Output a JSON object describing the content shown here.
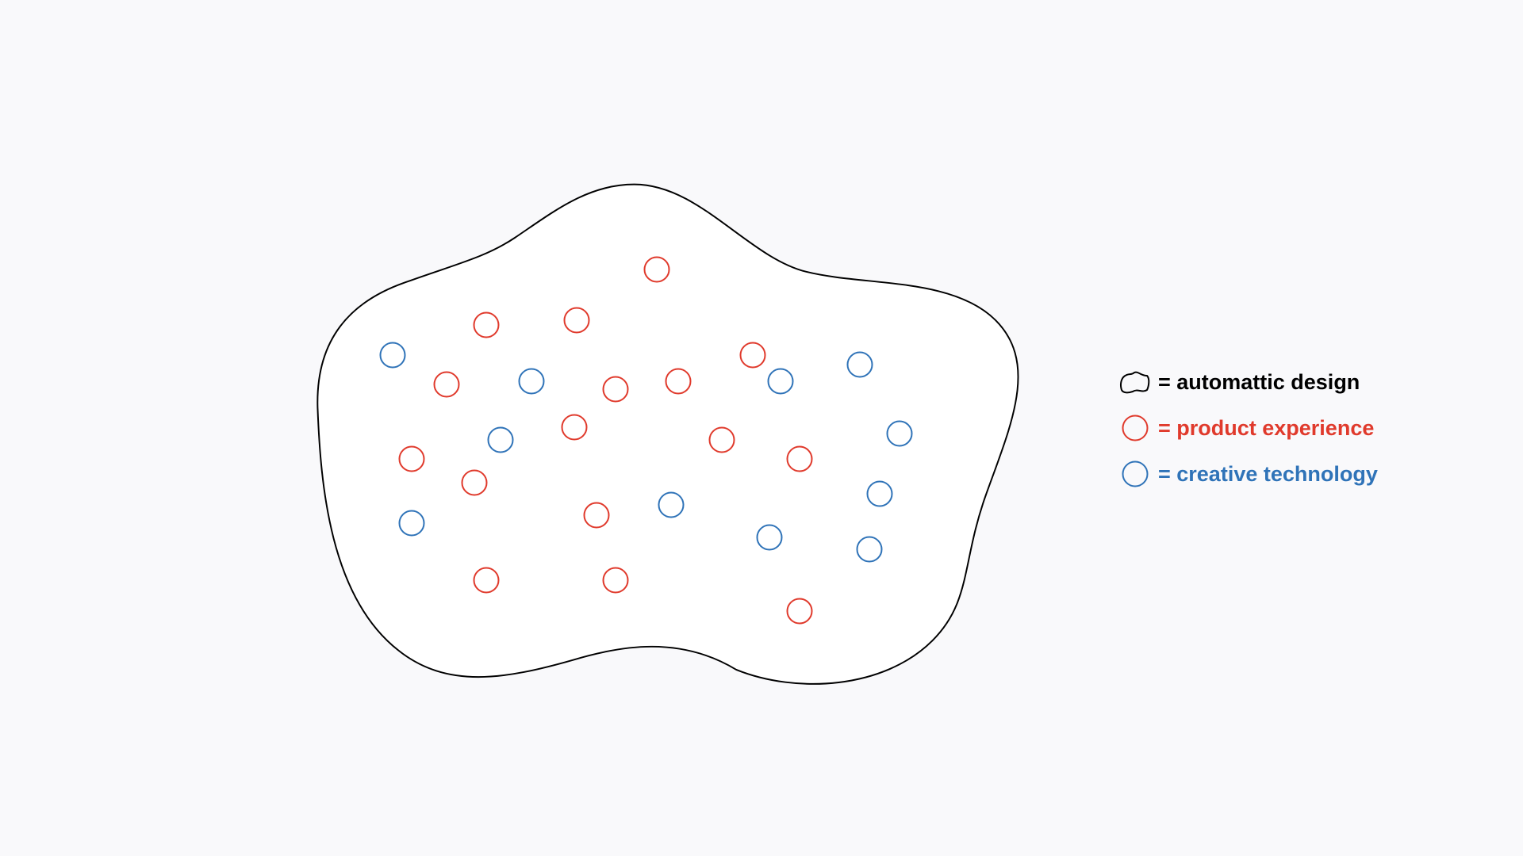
{
  "colors": {
    "product_experience": "#e03a2c",
    "creative_technology": "#2f73b8",
    "outline": "#000000",
    "background": "#f9f9fb"
  },
  "legend": [
    {
      "label": "= automattic design",
      "shape": "blob-outline",
      "color": "#000000"
    },
    {
      "label": "= product experience",
      "shape": "circle",
      "color": "#e03a2c"
    },
    {
      "label": "= creative technology",
      "shape": "circle",
      "color": "#2f73b8"
    }
  ],
  "counts": {
    "product_experience": 16,
    "creative_technology": 11
  }
}
